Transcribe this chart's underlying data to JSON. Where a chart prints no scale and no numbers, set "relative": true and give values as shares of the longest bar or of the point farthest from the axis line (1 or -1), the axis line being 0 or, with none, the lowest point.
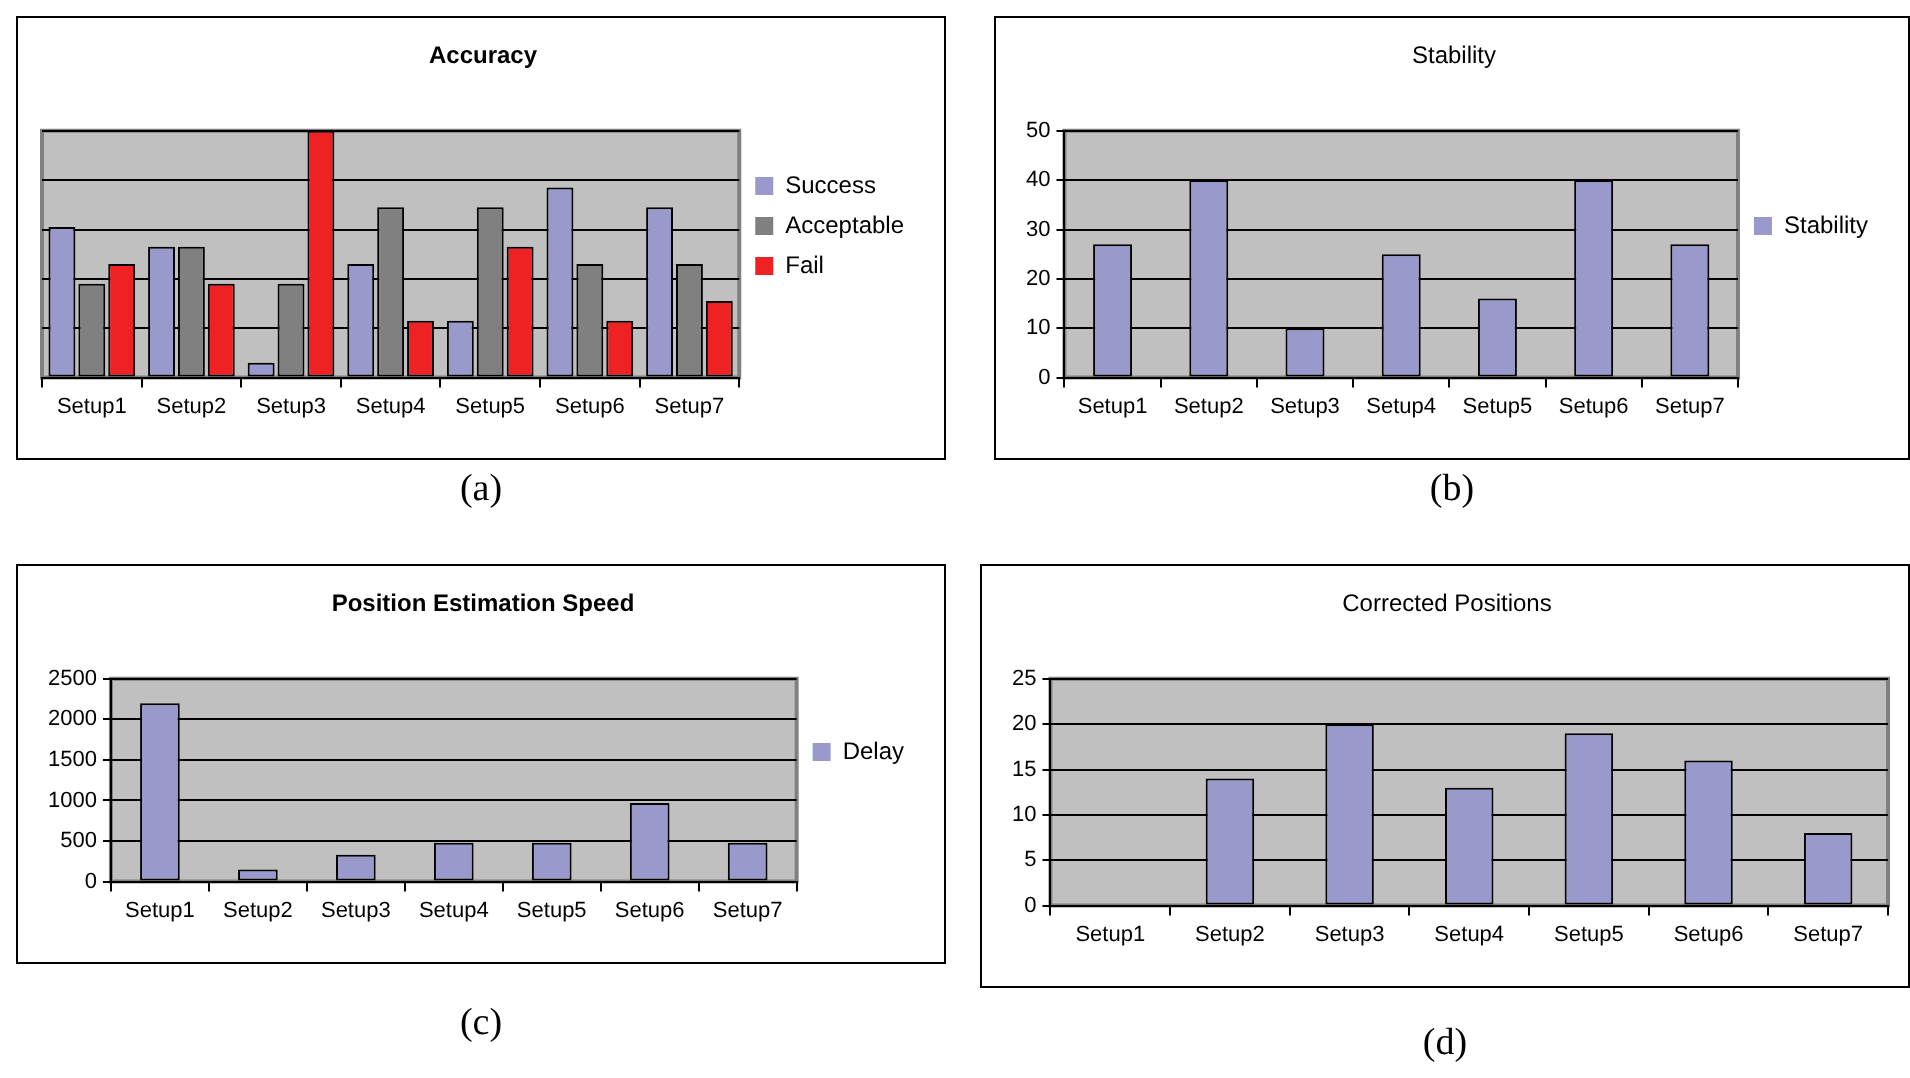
{
  "chart_data": [
    {
      "type": "bar",
      "title": "Accuracy",
      "relative": true,
      "categories": [
        "Setup1",
        "Setup2",
        "Setup3",
        "Setup4",
        "Setup5",
        "Setup6",
        "Setup7"
      ],
      "series": [
        {
          "name": "Success",
          "color": "#9999cc",
          "values": [
            0.61,
            0.53,
            0.06,
            0.46,
            0.23,
            0.77,
            0.69
          ]
        },
        {
          "name": "Acceptable",
          "color": "#808080",
          "values": [
            0.38,
            0.53,
            0.38,
            0.69,
            0.69,
            0.46,
            0.46
          ]
        },
        {
          "name": "Fail",
          "color": "#ee2222",
          "values": [
            0.46,
            0.38,
            1,
            0.23,
            0.53,
            0.23,
            0.31
          ]
        }
      ],
      "grid": "y",
      "legend": "right",
      "annotations": [
        "(a)"
      ]
    },
    {
      "type": "bar",
      "title": "Stability",
      "categories": [
        "Setup1",
        "Setup2",
        "Setup3",
        "Setup4",
        "Setup5",
        "Setup6",
        "Setup7"
      ],
      "series": [
        {
          "name": "Stability",
          "color": "#9999cc",
          "values": [
            27,
            40,
            10,
            25,
            16,
            40,
            27
          ]
        }
      ],
      "ylim": [
        0,
        50
      ],
      "yticks": [
        0,
        10,
        20,
        30,
        40,
        50
      ],
      "grid": "y",
      "legend": "right",
      "annotations": [
        "(b)"
      ]
    },
    {
      "type": "bar",
      "title": "Position Estimation Speed",
      "categories": [
        "Setup1",
        "Setup2",
        "Setup3",
        "Setup4",
        "Setup5",
        "Setup6",
        "Setup7"
      ],
      "series": [
        {
          "name": "Delay",
          "color": "#9999cc",
          "values": [
            2200,
            150,
            330,
            480,
            480,
            970,
            480
          ]
        }
      ],
      "ylim": [
        0,
        2500
      ],
      "yticks": [
        0,
        500,
        1000,
        1500,
        2000,
        2500
      ],
      "grid": "y",
      "legend": "right",
      "annotations": [
        "(c)"
      ]
    },
    {
      "type": "bar",
      "title": "Corrected Positions",
      "categories": [
        "Setup1",
        "Setup2",
        "Setup3",
        "Setup4",
        "Setup5",
        "Setup6",
        "Setup7"
      ],
      "series": [
        {
          "color": "#9999cc",
          "values": [
            0,
            14,
            20,
            13,
            19,
            16,
            8
          ]
        }
      ],
      "ylim": [
        0,
        25
      ],
      "yticks": [
        0,
        5,
        10,
        15,
        20,
        25
      ],
      "grid": "y",
      "annotations": [
        "(d)"
      ]
    }
  ]
}
